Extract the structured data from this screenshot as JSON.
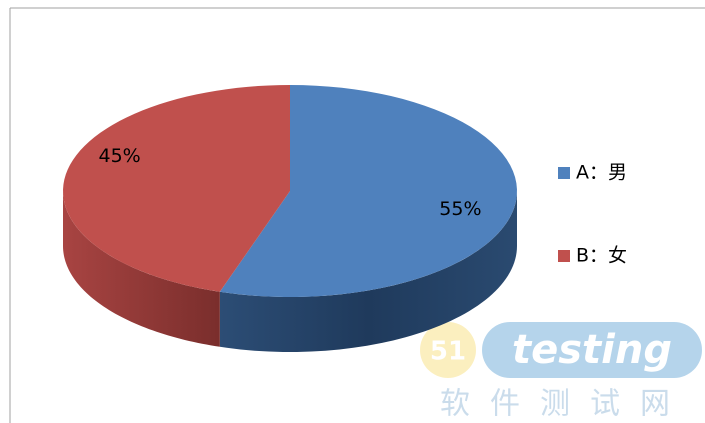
{
  "chart_data": {
    "type": "pie3d",
    "categories": [
      "A：男",
      "B：女"
    ],
    "values": [
      55,
      45
    ],
    "value_labels": [
      "55%",
      "45%"
    ],
    "colors": [
      "#4f81bd",
      "#c0504d"
    ],
    "legend": "right"
  },
  "watermark": {
    "badge": "51",
    "text": "testing",
    "subtitle": "软件测试网"
  }
}
